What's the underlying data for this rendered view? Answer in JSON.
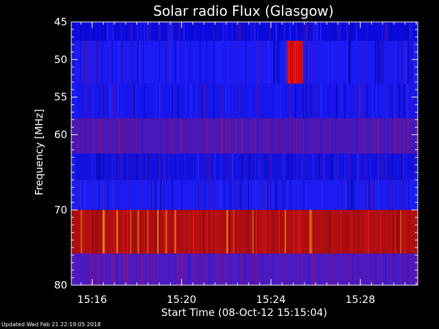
{
  "footer": "Updated Wed Feb 21 22:19:05 2018",
  "chart_data": {
    "type": "heatmap",
    "title": "Solar radio Flux (Glasgow)",
    "xlabel": "Start Time (08-Oct-12 15:15:04)",
    "ylabel": "Frequency [MHz]",
    "x_unit": "minutes after 15:15:04",
    "xlim": [
      0,
      15.5
    ],
    "ylim": [
      45,
      80
    ],
    "y_inverted": true,
    "x_ticks": [
      {
        "value": 0.93,
        "label": "15:16"
      },
      {
        "value": 4.93,
        "label": "15:20"
      },
      {
        "value": 8.93,
        "label": "15:24"
      },
      {
        "value": 12.93,
        "label": "15:28"
      }
    ],
    "y_ticks": [
      {
        "value": 45,
        "label": "45"
      },
      {
        "value": 50,
        "label": "50"
      },
      {
        "value": 55,
        "label": "55"
      },
      {
        "value": 60,
        "label": "60"
      },
      {
        "value": 70,
        "label": "70"
      },
      {
        "value": 80,
        "label": "80"
      }
    ],
    "y_minor_ticks": [
      46,
      47,
      48,
      49,
      51,
      52,
      53,
      54,
      56,
      57,
      58,
      59,
      61,
      62,
      63,
      64,
      65,
      66,
      67,
      68,
      69,
      71,
      72,
      73,
      74,
      75,
      76,
      77,
      78,
      79
    ],
    "x_minor_tick_step": 0.5,
    "bands": [
      {
        "f_start": 45,
        "f_end": 47.5,
        "level": "low",
        "color": "#0a0adf"
      },
      {
        "f_start": 47.5,
        "f_end": 53.2,
        "level": "low",
        "color": "#1a1af5"
      },
      {
        "f_start": 53.2,
        "f_end": 57.8,
        "level": "low",
        "color": "#1616ee"
      },
      {
        "f_start": 57.8,
        "f_end": 62.5,
        "level": "medium-low",
        "color": "#4818b8"
      },
      {
        "f_start": 62.5,
        "f_end": 66,
        "level": "low",
        "color": "#1212e0"
      },
      {
        "f_start": 66,
        "f_end": 70,
        "level": "low",
        "color": "#1c1cf2"
      },
      {
        "f_start": 70,
        "f_end": 75.8,
        "level": "high",
        "color": "#b00e10"
      },
      {
        "f_start": 75.8,
        "f_end": 80,
        "level": "medium-low",
        "color": "#4c1ac0"
      }
    ],
    "burst": {
      "t_start": 9.65,
      "t_end": 10.35,
      "f_start": 47.5,
      "f_end": 53.2,
      "level": "high",
      "color": "#cc0808"
    },
    "colors": {
      "low": "#1a1af5",
      "medium": "#5a1aa8",
      "high": "#c81010",
      "peak": "#ffb020"
    }
  }
}
